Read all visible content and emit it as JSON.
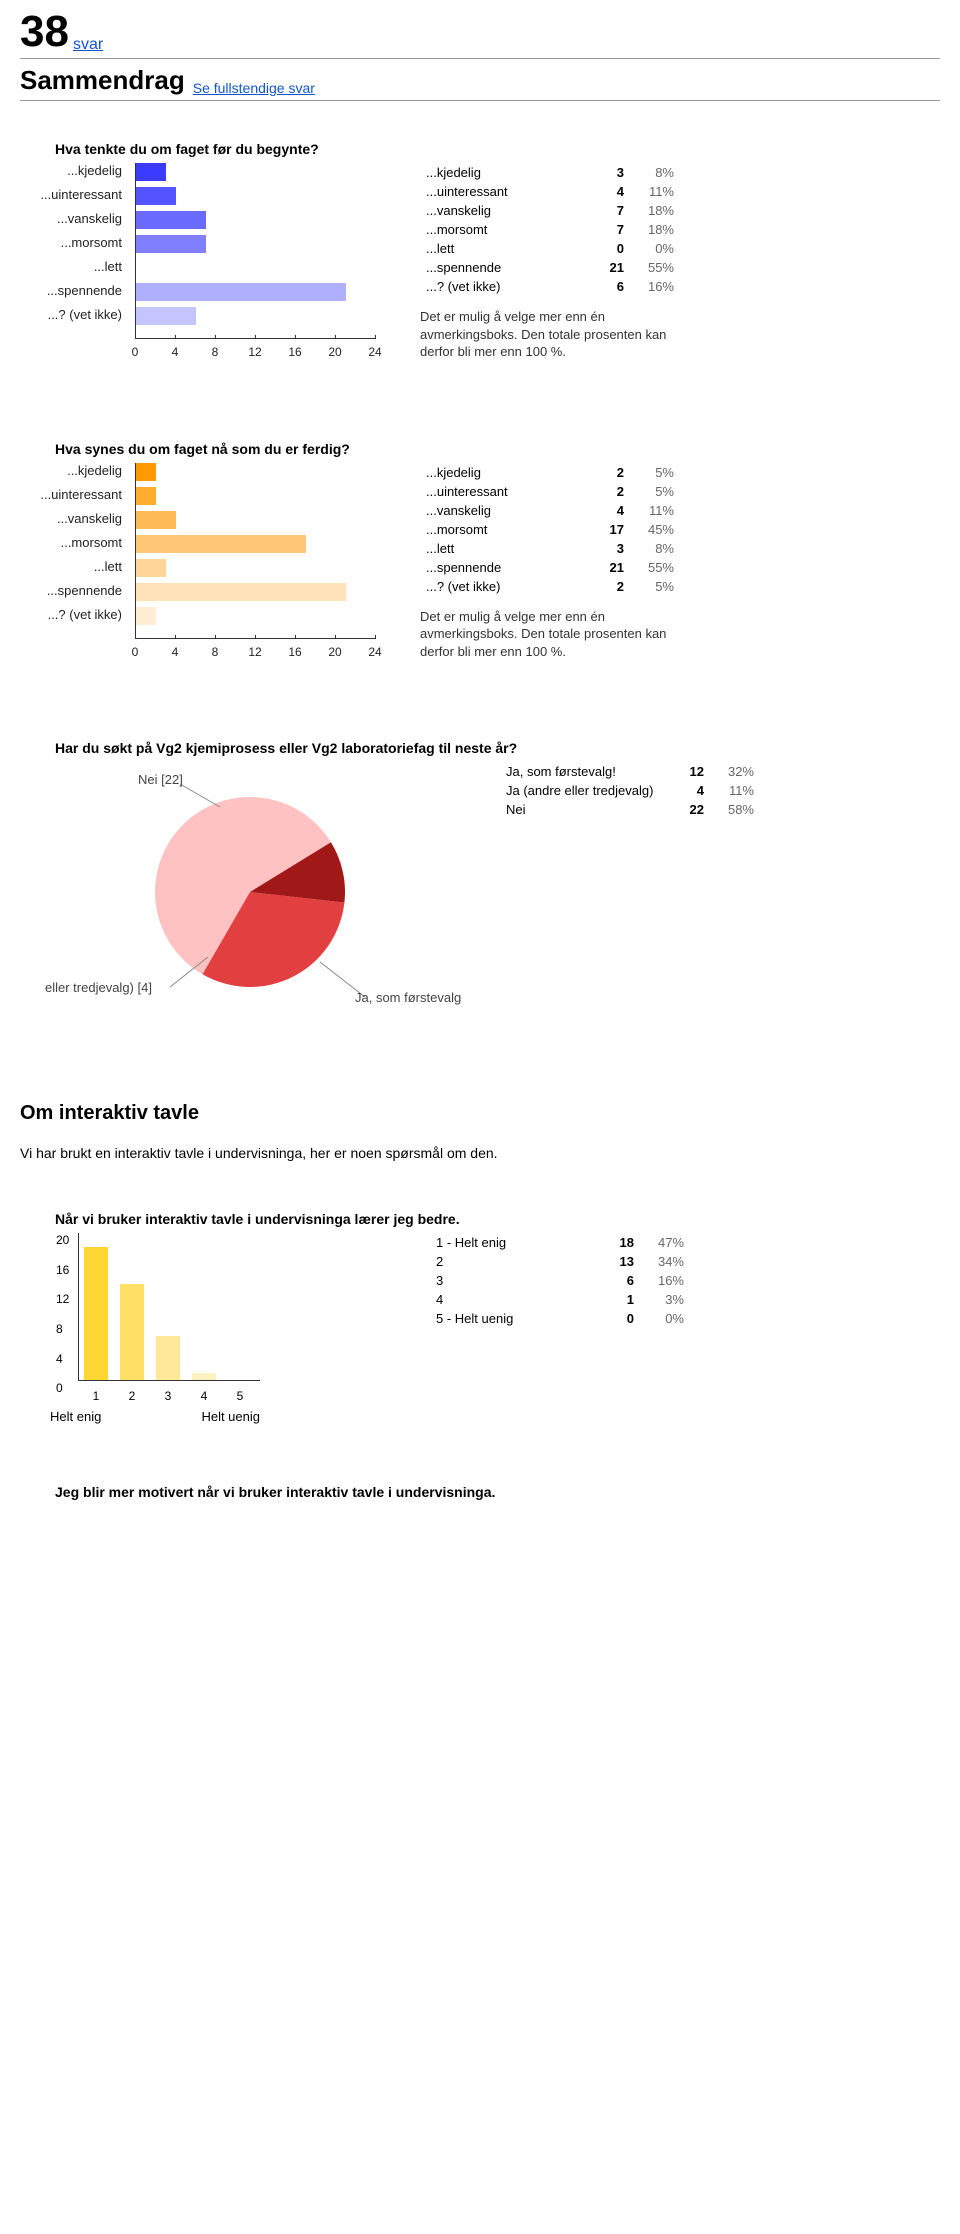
{
  "header": {
    "count": "38",
    "svar_link": "svar",
    "title": "Sammendrag",
    "full_link": "Se fullstendige svar"
  },
  "colors": {
    "blue_bars": [
      "#3b3bff",
      "#5454ff",
      "#6a6aff",
      "#8080ff",
      "#9a9aff",
      "#b0b0ff",
      "#c4c4ff"
    ],
    "orange_bars": [
      "#ff9900",
      "#ffad2e",
      "#ffbb55",
      "#ffc878",
      "#ffd699",
      "#ffe2b8",
      "#ffedd4"
    ],
    "yellow_bars": [
      "#ffd633",
      "#ffe066",
      "#ffe999",
      "#fff2c2",
      "#fff9e0"
    ],
    "pie": {
      "nei": "#ffc2c2",
      "ja_f": "#e24040",
      "ja_a": "#a01818"
    }
  },
  "q1": {
    "title": "Hva tenkte du om faget før du begynte?",
    "labels": [
      "...kjedelig",
      "...uinteressant",
      "...vanskelig",
      "...morsomt",
      "...lett",
      "...spennende",
      "...? (vet ikke)"
    ],
    "values": [
      3,
      4,
      7,
      7,
      0,
      21,
      6
    ],
    "pcts": [
      "8%",
      "11%",
      "18%",
      "18%",
      "0%",
      "55%",
      "16%"
    ],
    "xmax": 24,
    "xticks": [
      0,
      4,
      8,
      12,
      16,
      20,
      24
    ],
    "note": "Det er mulig å velge mer enn én avmerkingsboks. Den totale prosenten kan derfor bli mer enn 100&nbsp;%."
  },
  "q2": {
    "title": "Hva synes du om faget nå som du er ferdig?",
    "labels": [
      "...kjedelig",
      "...uinteressant",
      "...vanskelig",
      "...morsomt",
      "...lett",
      "...spennende",
      "...? (vet ikke)"
    ],
    "values": [
      2,
      2,
      4,
      17,
      3,
      21,
      2
    ],
    "pcts": [
      "5%",
      "5%",
      "11%",
      "45%",
      "8%",
      "55%",
      "5%"
    ],
    "xmax": 24,
    "xticks": [
      0,
      4,
      8,
      12,
      16,
      20,
      24
    ],
    "note": "Det er mulig å velge mer enn én avmerkingsboks. Den totale prosenten kan derfor bli mer enn 100&nbsp;%."
  },
  "q3": {
    "title": "Har du søkt på Vg2 kjemiprosess eller Vg2 laboratoriefag til neste år?",
    "rows": [
      {
        "label": "Ja, som førstevalg!",
        "n": "12",
        "p": "32%"
      },
      {
        "label": "Ja (andre eller tredjevalg)",
        "n": "4",
        "p": "11%"
      },
      {
        "label": "Nei",
        "n": "22",
        "p": "58%"
      }
    ],
    "pie_labels": {
      "nei": "Nei [22]",
      "andre": "eller tredjevalg) [4]",
      "forste": "Ja, som førstevalg"
    }
  },
  "sec_it": {
    "heading": "Om interaktiv tavle",
    "intro": "Vi har brukt en interaktiv tavle i undervisninga, her er noen spørsmål om den."
  },
  "q4": {
    "title": "Når vi bruker interaktiv tavle i undervisninga lærer jeg bedre.",
    "rows": [
      {
        "label": "1 -  Helt enig",
        "n": "18",
        "p": "47%"
      },
      {
        "label": "2",
        "n": "13",
        "p": "34%"
      },
      {
        "label": "3",
        "n": "6",
        "p": "16%"
      },
      {
        "label": "4",
        "n": "1",
        "p": "3%"
      },
      {
        "label": "5 -  Helt uenig",
        "n": "0",
        "p": "0%"
      }
    ],
    "values": [
      18,
      13,
      6,
      1,
      0
    ],
    "xticks": [
      "1",
      "2",
      "3",
      "4",
      "5"
    ],
    "ymax": 20,
    "yticks": [
      0,
      4,
      8,
      12,
      16,
      20
    ],
    "left_cap": "Helt enig",
    "right_cap": "Helt uenig"
  },
  "footer_q": "Jeg blir mer motivert når vi bruker interaktiv tavle i undervisninga."
}
